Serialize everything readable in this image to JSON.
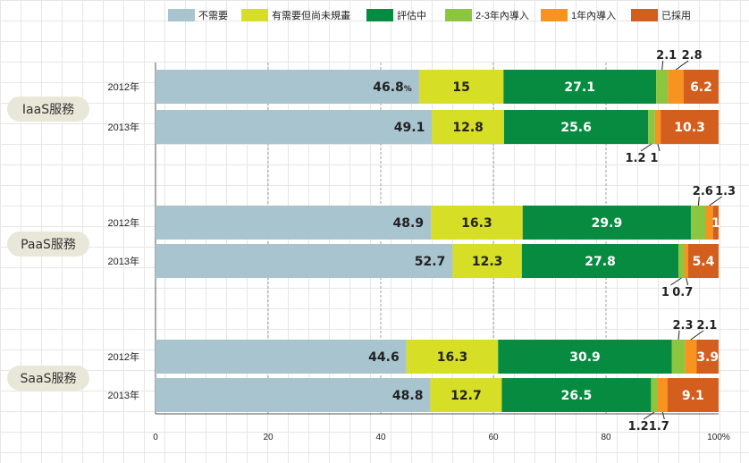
{
  "chart_data": {
    "type": "bar",
    "orientation": "horizontal",
    "stacked": true,
    "legend": {
      "placement": "top",
      "entries": [
        {
          "name": "不需要",
          "color": "#a7c4cf"
        },
        {
          "name": "有需要但尚未規畫",
          "color": "#d6de26"
        },
        {
          "name": "評估中",
          "color": "#078b41"
        },
        {
          "name": "2-3年內導入",
          "color": "#8cc63f"
        },
        {
          "name": "1年內導入",
          "color": "#f7931e"
        },
        {
          "name": "已採用",
          "color": "#d35e1e"
        }
      ]
    },
    "groups": [
      {
        "name": "IaaS服務",
        "bars": [
          {
            "year": "2012年",
            "values": [
              46.8,
              15,
              27.1,
              2.1,
              2.8,
              6.2
            ],
            "labels": [
              "46.8%",
              "15",
              "27.1",
              "2.1",
              "2.8",
              "6.2"
            ]
          },
          {
            "year": "2013年",
            "values": [
              49.1,
              12.8,
              25.6,
              1.2,
              1,
              10.3
            ],
            "labels": [
              "49.1",
              "12.8",
              "25.6",
              "1.2",
              "1",
              "10.3"
            ]
          }
        ]
      },
      {
        "name": "PaaS服務",
        "bars": [
          {
            "year": "2012年",
            "values": [
              48.9,
              16.3,
              29.9,
              2.6,
              1.3,
              1
            ],
            "labels": [
              "48.9",
              "16.3",
              "29.9",
              "2.6",
              "1.3",
              "1"
            ]
          },
          {
            "year": "2013年",
            "values": [
              52.7,
              12.3,
              27.8,
              1,
              0.7,
              5.4
            ],
            "labels": [
              "52.7",
              "12.3",
              "27.8",
              "1",
              "0.7",
              "5.4"
            ]
          }
        ]
      },
      {
        "name": "SaaS服務",
        "bars": [
          {
            "year": "2012年",
            "values": [
              44.6,
              16.3,
              30.9,
              2.3,
              2.1,
              3.9
            ],
            "labels": [
              "44.6",
              "16.3",
              "30.9",
              "2.3",
              "2.1",
              "3.9"
            ]
          },
          {
            "year": "2013年",
            "values": [
              48.8,
              12.7,
              26.5,
              1.2,
              1.7,
              9.1
            ],
            "labels": [
              "48.8",
              "12.7",
              "26.5",
              "1.2",
              "1.7",
              "9.1"
            ]
          }
        ]
      }
    ],
    "x_ticks": [
      "0",
      "20",
      "40",
      "60",
      "80",
      "100%"
    ],
    "xlim": [
      0,
      100
    ],
    "grid": true
  }
}
